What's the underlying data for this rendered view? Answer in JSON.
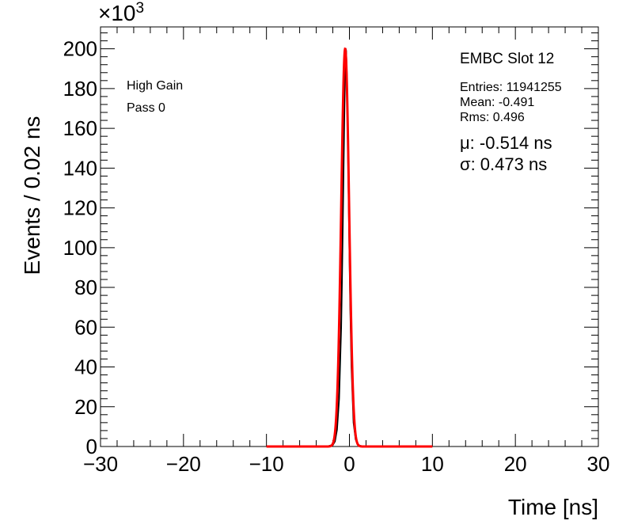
{
  "chart_data": {
    "type": "line",
    "xlabel": "Time [ns]",
    "ylabel": "Events / 0.02 ns",
    "y_multiplier_base": "×10",
    "y_multiplier_exp": "3",
    "xlim": [
      -30,
      30
    ],
    "ylim": [
      0,
      211
    ],
    "x_major_ticks": [
      -30,
      -20,
      -10,
      0,
      10,
      20,
      30
    ],
    "y_major_ticks": [
      0,
      20,
      40,
      60,
      80,
      100,
      120,
      140,
      160,
      180,
      200
    ],
    "x_tick_labels": [
      "−30",
      "−20",
      "−10",
      "0",
      "10",
      "20",
      "30"
    ],
    "y_tick_labels": [
      "0",
      "20",
      "40",
      "60",
      "80",
      "100",
      "120",
      "140",
      "160",
      "180",
      "200"
    ],
    "grid": false,
    "series": [
      {
        "role": "histogram",
        "color": "#000000",
        "x": [
          -3.0,
          -2.5,
          -2.0,
          -1.75,
          -1.5,
          -1.25,
          -1.0,
          -0.9,
          -0.8,
          -0.7,
          -0.6,
          -0.5,
          -0.45,
          -0.4,
          -0.3,
          -0.2,
          -0.1,
          0.0,
          0.1,
          0.25,
          0.5,
          0.75,
          1.0,
          1.25,
          1.5,
          2.0,
          2.5,
          3.0
        ],
        "y": [
          0,
          0.2,
          0.8,
          2.6,
          8.5,
          24,
          60,
          84,
          112,
          143,
          172,
          193,
          200,
          199,
          184,
          158,
          128,
          98,
          71,
          40,
          12,
          3.6,
          1.0,
          0.4,
          0.15,
          0.05,
          0,
          0
        ]
      },
      {
        "role": "fit",
        "color": "#ff0000",
        "mu": -0.514,
        "sigma": 0.473,
        "amplitude": 200,
        "range": [
          -10,
          10
        ]
      }
    ],
    "labels": {
      "gain": "High Gain",
      "pass": "Pass 0"
    },
    "stats": {
      "title": "EMBC Slot 12",
      "entries": "Entries: 11941255",
      "mean": "Mean: -0.491",
      "rms": "Rms: 0.496",
      "mu": "μ: -0.514 ns",
      "sigma": "σ: 0.473 ns"
    }
  }
}
